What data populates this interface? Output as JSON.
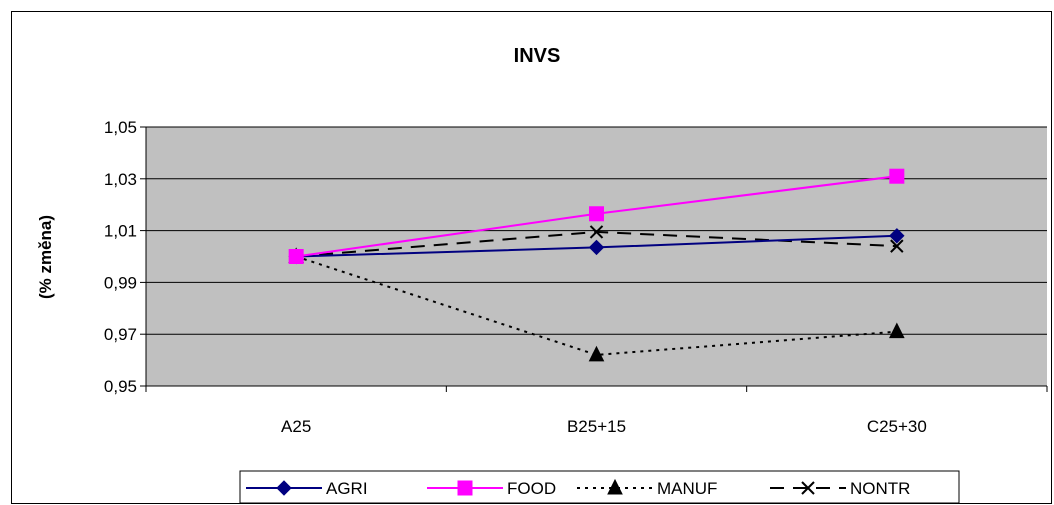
{
  "chart_data": {
    "type": "line",
    "title": "INVS",
    "xlabel": "",
    "ylabel": "(% změna)",
    "categories": [
      "A25",
      "B25+15",
      "C25+30"
    ],
    "ylim": [
      0.95,
      1.05
    ],
    "yticks": [
      0.95,
      0.97,
      0.99,
      1.01,
      1.03,
      1.05
    ],
    "ytick_labels": [
      "0,95",
      "0,97",
      "0,99",
      "1,01",
      "1,03",
      "1,05"
    ],
    "grid": true,
    "plot_background": "#C0C0C0",
    "legend_position": "bottom",
    "series": [
      {
        "name": "AGRI",
        "values": [
          1.0,
          1.0035,
          1.008
        ],
        "color": "#000080",
        "marker": "diamond",
        "dash": "solid"
      },
      {
        "name": "FOOD",
        "values": [
          1.0,
          1.0165,
          1.031
        ],
        "color": "#FF00FF",
        "marker": "square",
        "dash": "solid"
      },
      {
        "name": "MANUF",
        "values": [
          1.0,
          0.962,
          0.971
        ],
        "color": "#000000",
        "marker": "triangle",
        "dash": "dotted"
      },
      {
        "name": "NONTR",
        "values": [
          1.0,
          1.0095,
          1.004
        ],
        "color": "#000000",
        "marker": "x",
        "dash": "dashed"
      }
    ]
  }
}
